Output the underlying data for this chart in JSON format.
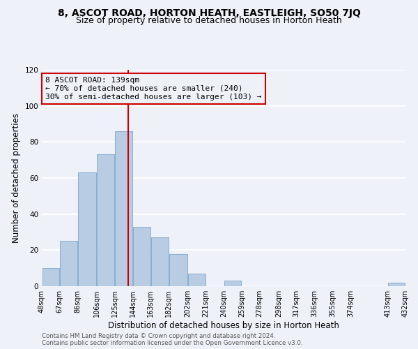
{
  "title": "8, ASCOT ROAD, HORTON HEATH, EASTLEIGH, SO50 7JQ",
  "subtitle": "Size of property relative to detached houses in Horton Heath",
  "xlabel": "Distribution of detached houses by size in Horton Heath",
  "ylabel": "Number of detached properties",
  "footnote1": "Contains HM Land Registry data © Crown copyright and database right 2024.",
  "footnote2": "Contains public sector information licensed under the Open Government Licence v3.0.",
  "annotation_line1": "8 ASCOT ROAD: 139sqm",
  "annotation_line2": "← 70% of detached houses are smaller (240)",
  "annotation_line3": "30% of semi-detached houses are larger (103) →",
  "property_size": 139,
  "bar_left_edges": [
    48,
    67,
    86,
    106,
    125,
    144,
    163,
    182,
    202,
    221,
    240,
    259,
    278,
    298,
    317,
    336,
    355,
    374,
    394,
    413
  ],
  "bar_widths": [
    19,
    19,
    20,
    19,
    19,
    19,
    19,
    20,
    19,
    19,
    19,
    19,
    20,
    19,
    19,
    19,
    19,
    20,
    19,
    19
  ],
  "bar_heights": [
    10,
    25,
    63,
    73,
    86,
    33,
    27,
    18,
    7,
    0,
    3,
    0,
    0,
    0,
    0,
    0,
    0,
    0,
    0,
    2
  ],
  "bar_color": "#b8cce4",
  "bar_edge_color": "#7ca6c8",
  "vline_x": 139,
  "vline_color": "#cc0000",
  "ylim": [
    0,
    120
  ],
  "xlim": [
    48,
    432
  ],
  "tick_labels": [
    "48sqm",
    "67sqm",
    "86sqm",
    "106sqm",
    "125sqm",
    "144sqm",
    "163sqm",
    "182sqm",
    "202sqm",
    "221sqm",
    "240sqm",
    "259sqm",
    "278sqm",
    "298sqm",
    "317sqm",
    "336sqm",
    "355sqm",
    "374sqm",
    "413sqm",
    "432sqm"
  ],
  "tick_positions": [
    48,
    67,
    86,
    106,
    125,
    144,
    163,
    182,
    202,
    221,
    240,
    259,
    278,
    298,
    317,
    336,
    355,
    374,
    413,
    432
  ],
  "background_color": "#eef2f8",
  "grid_color": "#ffffff",
  "ann_box_color": "#cc0000",
  "title_fontsize": 10,
  "subtitle_fontsize": 9,
  "axis_fontsize": 8.5,
  "tick_fontsize": 7,
  "ann_fontsize": 8,
  "yticks": [
    0,
    20,
    40,
    60,
    80,
    100,
    120
  ]
}
